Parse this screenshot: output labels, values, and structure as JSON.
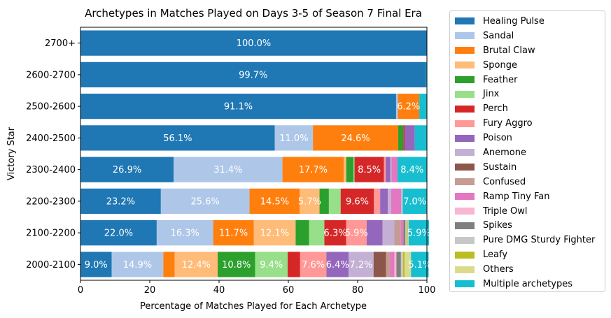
{
  "chart_data": {
    "type": "bar",
    "orientation": "horizontal",
    "stacked": true,
    "title": "Archetypes in Matches Played on Days 3-5 of Season 7 Final Era",
    "xlabel": "Percentage of Matches Played for Each Archetype",
    "ylabel": "Victory Star",
    "xlim": [
      0,
      100
    ],
    "xticks": [
      "0",
      "20",
      "40",
      "60",
      "80",
      "100"
    ],
    "grid": false,
    "legend_position": "outside-right",
    "categories": [
      "2700+",
      "2600-2700",
      "2500-2600",
      "2400-2500",
      "2300-2400",
      "2200-2300",
      "2100-2200",
      "2000-2100"
    ],
    "series": [
      {
        "name": "Healing Pulse",
        "color": "#1f77b4",
        "values": [
          100.0,
          99.7,
          91.1,
          56.1,
          26.9,
          23.2,
          22.0,
          9.0
        ]
      },
      {
        "name": "Sandal",
        "color": "#aec7e8",
        "values": [
          0,
          0,
          0.5,
          11.0,
          31.4,
          25.6,
          16.3,
          14.9
        ]
      },
      {
        "name": "Brutal Claw",
        "color": "#ff7f0e",
        "values": [
          0,
          0,
          6.2,
          24.6,
          17.7,
          14.5,
          11.7,
          3.3
        ]
      },
      {
        "name": "Sponge",
        "color": "#ffbb78",
        "values": [
          0,
          0,
          0,
          0,
          0.7,
          5.7,
          12.1,
          12.4
        ]
      },
      {
        "name": "Feather",
        "color": "#2ca02c",
        "values": [
          0,
          0,
          0,
          1.5,
          2.1,
          2.7,
          3.9,
          10.8
        ]
      },
      {
        "name": "Jinx",
        "color": "#98df8a",
        "values": [
          0,
          0,
          0,
          0,
          0.3,
          3.4,
          4.4,
          9.4
        ]
      },
      {
        "name": "Perch",
        "color": "#d62728",
        "values": [
          0,
          0,
          0,
          0.4,
          8.5,
          9.6,
          6.3,
          3.6
        ]
      },
      {
        "name": "Fury Aggro",
        "color": "#ff9896",
        "values": [
          0,
          0,
          0,
          0,
          0.5,
          1.8,
          5.9,
          7.6
        ]
      },
      {
        "name": "Poison",
        "color": "#9467bd",
        "values": [
          0,
          0,
          0,
          2.9,
          1.3,
          2.2,
          4.6,
          6.4
        ]
      },
      {
        "name": "Anemone",
        "color": "#c5b0d5",
        "values": [
          0,
          0,
          0,
          0,
          0.4,
          1.0,
          3.4,
          7.2
        ]
      },
      {
        "name": "Sustain",
        "color": "#8c564b",
        "values": [
          0,
          0,
          0,
          0,
          0,
          0,
          0,
          3.6
        ]
      },
      {
        "name": "Confused",
        "color": "#c49c94",
        "values": [
          0,
          0,
          0,
          0,
          0,
          0,
          1.9,
          1.2
        ]
      },
      {
        "name": "Ramp Tiny Fan",
        "color": "#e377c2",
        "values": [
          0,
          0,
          0,
          0,
          1.7,
          2.9,
          0.7,
          1.2
        ]
      },
      {
        "name": "Triple Owl",
        "color": "#f7b6d2",
        "values": [
          0,
          0,
          0,
          0,
          0,
          0,
          0,
          0.6
        ]
      },
      {
        "name": "Spikes",
        "color": "#7f7f7f",
        "values": [
          0,
          0,
          0,
          0,
          0,
          0,
          0.6,
          1.3
        ]
      },
      {
        "name": "Pure DMG Sturdy Fighter",
        "color": "#c7c7c7",
        "values": [
          0,
          0,
          0,
          0,
          0,
          0.4,
          0.4,
          0.6
        ]
      },
      {
        "name": "Leafy",
        "color": "#bcbd22",
        "values": [
          0,
          0,
          0,
          0,
          0,
          0,
          0.3,
          0.5
        ]
      },
      {
        "name": "Others",
        "color": "#dbdb8d",
        "values": [
          0,
          0,
          0,
          0,
          0,
          0,
          0.2,
          1.8
        ]
      },
      {
        "name": "Multiple archetypes",
        "color": "#17becf",
        "values": [
          0,
          0.3,
          2.2,
          3.5,
          8.4,
          7.0,
          5.9,
          5.1
        ]
      }
    ],
    "data_labels": [
      [
        "100.0%",
        "",
        "",
        "",
        "",
        "",
        "",
        "",
        "",
        "",
        "",
        "",
        "",
        "",
        "",
        "",
        "",
        "",
        ""
      ],
      [
        "99.7%",
        "",
        "",
        "",
        "",
        "",
        "",
        "",
        "",
        "",
        "",
        "",
        "",
        "",
        "",
        "",
        "",
        "",
        ""
      ],
      [
        "91.1%",
        "",
        "6.2%",
        "",
        "",
        "",
        "",
        "",
        "",
        "",
        "",
        "",
        "",
        "",
        "",
        "",
        "",
        "",
        ""
      ],
      [
        "56.1%",
        "11.0%",
        "24.6%",
        "",
        "",
        "",
        "",
        "",
        "",
        "",
        "",
        "",
        "",
        "",
        "",
        "",
        "",
        "",
        ""
      ],
      [
        "26.9%",
        "31.4%",
        "17.7%",
        "",
        "",
        "",
        "8.5%",
        "",
        "",
        "",
        "",
        "",
        "",
        "",
        "",
        "",
        "",
        "",
        "8.4%"
      ],
      [
        "23.2%",
        "25.6%",
        "14.5%",
        "5.7%",
        "",
        "",
        "9.6%",
        "",
        "",
        "",
        "",
        "",
        "",
        "",
        "",
        "",
        "",
        "",
        "7.0%"
      ],
      [
        "22.0%",
        "16.3%",
        "11.7%",
        "12.1%",
        "",
        "",
        "6.3%",
        "5.9%",
        "",
        "",
        "",
        "",
        "",
        "",
        "",
        "",
        "",
        "",
        "5.9%"
      ],
      [
        "9.0%",
        "14.9%",
        "",
        "12.4%",
        "10.8%",
        "9.4%",
        "",
        "7.6%",
        "6.4%",
        "7.2%",
        "",
        "",
        "",
        "",
        "",
        "",
        "",
        "",
        "5.1%"
      ]
    ]
  }
}
